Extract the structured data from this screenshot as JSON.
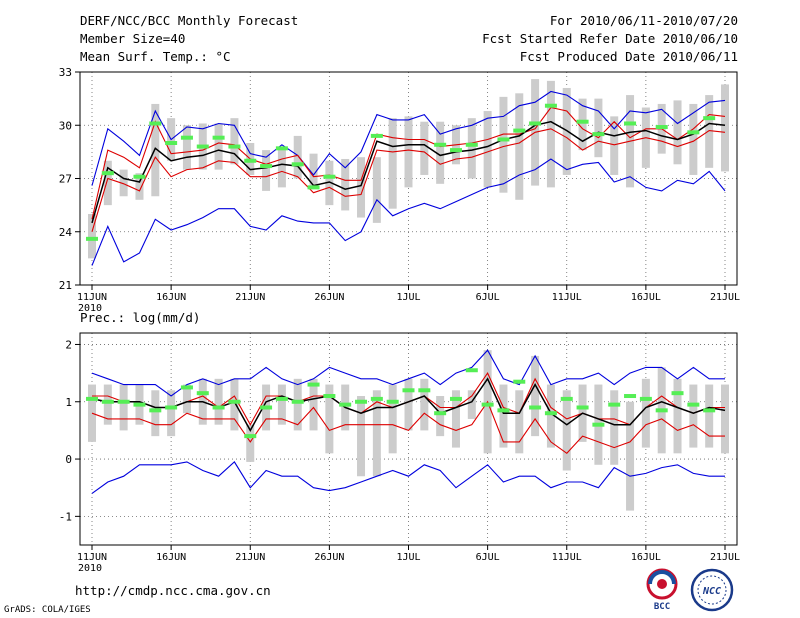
{
  "header": {
    "title": "DERF/NCC/BCC Monthly Forecast",
    "member_size": "Member Size=40",
    "variable": "Mean Surf. Temp.: °C",
    "period": "For 2010/06/11-2010/07/20",
    "started": "Fcst Started Refer Date 2010/06/10",
    "produced": "Fcst Produced Date 2010/06/11"
  },
  "colors": {
    "max_min_line": "#0000dd",
    "spread_line": "#dd0000",
    "mean_line": "#000000",
    "reference_marker": "#55ee55",
    "box": "#cccccc",
    "grid": "#666666"
  },
  "footer": {
    "url": "http://cmdp.ncc.cma.gov.cn",
    "credit": "GrADS: COLA/IGES",
    "logo_left": "BCC",
    "logo_right": "NCC"
  },
  "chart_data": [
    {
      "type": "line",
      "title": "Mean Surf. Temp.: °C",
      "ylabel": "°C",
      "ylim": [
        21,
        33
      ],
      "yticks": [
        21,
        24,
        27,
        30,
        33
      ],
      "xlim": [
        0,
        40
      ],
      "x_ticks": [
        {
          "x": 0,
          "label": "11JUN"
        },
        {
          "x": 5,
          "label": "16JUN"
        },
        {
          "x": 10,
          "label": "21JUN"
        },
        {
          "x": 15,
          "label": "26JUN"
        },
        {
          "x": 20,
          "label": "1JUL"
        },
        {
          "x": 25,
          "label": "6JUL"
        },
        {
          "x": 30,
          "label": "11JUL"
        },
        {
          "x": 35,
          "label": "16JUL"
        },
        {
          "x": 40,
          "label": "21JUL"
        }
      ],
      "year_label": "2010",
      "grid": true,
      "box_low": [
        22.5,
        25.5,
        26,
        25.8,
        26,
        28,
        27.5,
        27.5,
        27.5,
        27.8,
        27.2,
        26.3,
        26.5,
        27,
        26.5,
        25.5,
        25.2,
        24.8,
        24.5,
        25.3,
        26.5,
        27.2,
        26.7,
        27.8,
        27,
        26.5,
        26.2,
        25.8,
        26.6,
        26.5,
        27.2,
        28.6,
        28.2,
        27.2,
        26.5,
        27.6,
        28.4,
        27.8,
        27.2,
        27.6,
        27.4
      ],
      "box_high": [
        25,
        28,
        27.5,
        27.3,
        31.2,
        30.4,
        30,
        30.1,
        30.1,
        30.4,
        29,
        28.6,
        28.8,
        29.4,
        28.4,
        28,
        28.1,
        28.2,
        28.2,
        30.4,
        30.5,
        30.2,
        30.2,
        30,
        30.4,
        30.8,
        31.6,
        31.8,
        32.6,
        32.5,
        32.1,
        31.5,
        31.5,
        30.5,
        31.7,
        31,
        31.2,
        31.4,
        31.2,
        31.7,
        32.3
      ],
      "series": [
        {
          "name": "max",
          "color": "#0000dd",
          "values": [
            26.6,
            29.8,
            29.1,
            28.3,
            30.8,
            29.2,
            29.9,
            29.8,
            30.1,
            30,
            28.4,
            28.2,
            28.9,
            28.3,
            27.2,
            28.4,
            27.6,
            28.5,
            30.6,
            30.3,
            30.3,
            30.6,
            29.5,
            29.8,
            30,
            30.4,
            30.5,
            31.1,
            31.3,
            31.9,
            31.7,
            31.1,
            30.8,
            29.8,
            30.8,
            30.7,
            30.9,
            30.1,
            30.7,
            31.3,
            31.4
          ]
        },
        {
          "name": "upper",
          "color": "#dd0000",
          "values": [
            24.7,
            28.6,
            28.2,
            27.6,
            30.2,
            28.4,
            28.5,
            28.6,
            29.0,
            28.9,
            28.1,
            27.8,
            28.1,
            28.3,
            27.1,
            27.2,
            26.9,
            26.9,
            29.5,
            29.3,
            29.2,
            29.2,
            28.8,
            28.9,
            29,
            29.2,
            29.5,
            29.5,
            29.8,
            31,
            30.8,
            29.8,
            29.3,
            30.2,
            29.3,
            29.8,
            29.8,
            29.2,
            29.8,
            30.6,
            30.5
          ]
        },
        {
          "name": "mean",
          "color": "#000000",
          "values": [
            24.5,
            27.6,
            27,
            26.8,
            28.7,
            28,
            28.2,
            28.3,
            28.6,
            28.4,
            27.5,
            27.6,
            27.8,
            27.7,
            26.6,
            26.8,
            26.4,
            26.6,
            29.1,
            28.8,
            28.9,
            28.9,
            28.3,
            28.5,
            28.6,
            28.8,
            29.2,
            29.4,
            30,
            30.2,
            29.7,
            29.1,
            29.6,
            29.4,
            29.6,
            29.7,
            29.4,
            29.2,
            29.5,
            30.1,
            30
          ]
        },
        {
          "name": "lower",
          "color": "#dd0000",
          "values": [
            24,
            27,
            26.7,
            26.3,
            28.2,
            27.1,
            27.5,
            27.6,
            28,
            27.9,
            27.1,
            27.1,
            27.4,
            27.1,
            26.2,
            26.5,
            26,
            26.1,
            28.6,
            28.5,
            28.6,
            28.5,
            27.8,
            28.1,
            28.2,
            28.5,
            28.8,
            29,
            29.6,
            29.8,
            29.3,
            28.6,
            29.1,
            28.9,
            29.1,
            29.3,
            29.1,
            28.8,
            29.1,
            29.7,
            29.6
          ]
        },
        {
          "name": "min",
          "color": "#0000dd",
          "values": [
            22.1,
            24.3,
            22.3,
            22.8,
            24.7,
            24.1,
            24.4,
            24.8,
            25.3,
            25.3,
            24.3,
            24.1,
            24.9,
            24.6,
            24.5,
            24.5,
            23.5,
            24,
            25.8,
            24.9,
            25.3,
            25.6,
            25.3,
            25.7,
            26.1,
            26.5,
            26.7,
            27.2,
            27.5,
            28.1,
            27.5,
            27.8,
            27.9,
            26.8,
            27.1,
            26.5,
            26.3,
            26.9,
            26.7,
            27.4,
            26.3
          ]
        }
      ],
      "reference_markers": [
        {
          "x": 0,
          "y": 23.6
        },
        {
          "x": 1,
          "y": 27.3
        },
        {
          "x": 3,
          "y": 27.1
        },
        {
          "x": 4,
          "y": 30.1
        },
        {
          "x": 5,
          "y": 29
        },
        {
          "x": 6,
          "y": 29.3
        },
        {
          "x": 7,
          "y": 28.8
        },
        {
          "x": 8,
          "y": 29.3
        },
        {
          "x": 9,
          "y": 28.8
        },
        {
          "x": 10,
          "y": 28
        },
        {
          "x": 11,
          "y": 27.7
        },
        {
          "x": 12,
          "y": 28.7
        },
        {
          "x": 13,
          "y": 27.8
        },
        {
          "x": 14,
          "y": 26.5
        },
        {
          "x": 15,
          "y": 27.1
        },
        {
          "x": 18,
          "y": 29.4
        },
        {
          "x": 22,
          "y": 28.9
        },
        {
          "x": 23,
          "y": 28.6
        },
        {
          "x": 24,
          "y": 28.9
        },
        {
          "x": 26,
          "y": 29.2
        },
        {
          "x": 27,
          "y": 29.7
        },
        {
          "x": 28,
          "y": 30.1
        },
        {
          "x": 29,
          "y": 31.1
        },
        {
          "x": 31,
          "y": 30.2
        },
        {
          "x": 32,
          "y": 29.5
        },
        {
          "x": 34,
          "y": 30.1
        },
        {
          "x": 36,
          "y": 29.9
        },
        {
          "x": 38,
          "y": 29.6
        },
        {
          "x": 39,
          "y": 30.4
        }
      ]
    },
    {
      "type": "line",
      "title": "Prec.: log(mm/d)",
      "ylabel": "log(mm/d)",
      "ylim": [
        -1.5,
        2.2
      ],
      "yticks": [
        -1,
        0,
        1,
        2
      ],
      "xlim": [
        0,
        40
      ],
      "x_ticks": [
        {
          "x": 0,
          "label": "11JUN"
        },
        {
          "x": 5,
          "label": "16JUN"
        },
        {
          "x": 10,
          "label": "21JUN"
        },
        {
          "x": 15,
          "label": "26JUN"
        },
        {
          "x": 20,
          "label": "1JUL"
        },
        {
          "x": 25,
          "label": "6JUL"
        },
        {
          "x": 30,
          "label": "11JUL"
        },
        {
          "x": 35,
          "label": "16JUL"
        },
        {
          "x": 40,
          "label": "21JUL"
        }
      ],
      "year_label": "2010",
      "grid": true,
      "box_low": [
        0.3,
        0.6,
        0.5,
        0.6,
        0.4,
        0.4,
        0.8,
        0.6,
        0.6,
        0.5,
        -0.05,
        0.5,
        0.6,
        0.5,
        0.5,
        0.1,
        0.5,
        -0.3,
        -0.3,
        0.1,
        0.5,
        0.5,
        0.4,
        0.2,
        0.7,
        0.1,
        0.2,
        0.1,
        0.4,
        0.2,
        -0.2,
        0.3,
        -0.1,
        -0.1,
        -0.9,
        0.2,
        0.1,
        0.1,
        0.2,
        0.2,
        0.1
      ],
      "box_high": [
        1.3,
        1.3,
        1.3,
        1.3,
        1.2,
        1.2,
        1.3,
        1.4,
        1.4,
        1.4,
        0.6,
        1.3,
        1.3,
        1.4,
        1.4,
        1.3,
        1.3,
        1.1,
        1.2,
        1.3,
        1.4,
        1.4,
        1.1,
        1.2,
        1.2,
        1.9,
        1.3,
        1.2,
        1.8,
        1.3,
        1.2,
        1.3,
        1.3,
        1.2,
        1.0,
        1.4,
        1.6,
        1.4,
        1.3,
        1.3,
        1.3
      ],
      "series": [
        {
          "name": "max",
          "color": "#0000dd",
          "values": [
            1.5,
            1.4,
            1.3,
            1.3,
            1.3,
            1.1,
            1.3,
            1.4,
            1.3,
            1.4,
            1.4,
            1.6,
            1.4,
            1.3,
            1.4,
            1.6,
            1.5,
            1.4,
            1.4,
            1.3,
            1.4,
            1.5,
            1.3,
            1.5,
            1.6,
            1.9,
            1.4,
            1.3,
            1.8,
            1.3,
            1.4,
            1.4,
            1.5,
            1.3,
            1.5,
            1.6,
            1.6,
            1.4,
            1.6,
            1.4,
            1.4
          ]
        },
        {
          "name": "upper",
          "color": "#dd0000",
          "values": [
            1.1,
            1.1,
            1.0,
            1.0,
            0.9,
            0.9,
            1.0,
            1.1,
            0.9,
            1.1,
            0.6,
            1.1,
            1.1,
            1.0,
            1.1,
            1.1,
            0.9,
            0.8,
            1.0,
            0.9,
            1.0,
            1.1,
            0.9,
            0.9,
            1.1,
            1.5,
            0.9,
            0.8,
            1.4,
            0.9,
            0.7,
            0.8,
            0.7,
            0.7,
            0.6,
            0.9,
            1.1,
            0.9,
            0.8,
            0.9,
            0.9
          ]
        },
        {
          "name": "mean",
          "color": "#000000",
          "values": [
            1.05,
            1.0,
            1.0,
            1.0,
            0.9,
            0.9,
            1.0,
            1.0,
            0.9,
            1.0,
            0.5,
            1.0,
            1.1,
            1.0,
            1.05,
            1.1,
            0.9,
            0.8,
            0.9,
            0.9,
            1.0,
            1.1,
            0.8,
            0.9,
            1.0,
            1.4,
            0.8,
            0.8,
            1.3,
            0.8,
            0.6,
            0.8,
            0.7,
            0.6,
            0.6,
            0.9,
            1.0,
            0.9,
            0.8,
            0.9,
            0.85
          ]
        },
        {
          "name": "lower",
          "color": "#dd0000",
          "values": [
            0.8,
            0.7,
            0.7,
            0.7,
            0.6,
            0.6,
            0.8,
            0.7,
            0.7,
            0.7,
            0.3,
            0.7,
            0.7,
            0.6,
            0.9,
            0.5,
            0.6,
            0.6,
            0.6,
            0.6,
            0.5,
            0.8,
            0.6,
            0.5,
            0.6,
            1.0,
            0.3,
            0.3,
            0.7,
            0.3,
            0.1,
            0.4,
            0.3,
            0.2,
            0.3,
            0.6,
            0.7,
            0.5,
            0.6,
            0.4,
            0.4
          ]
        },
        {
          "name": "min",
          "color": "#0000dd",
          "values": [
            -0.6,
            -0.4,
            -0.3,
            -0.1,
            -0.1,
            -0.1,
            -0.05,
            -0.2,
            -0.3,
            -0.05,
            -0.5,
            -0.2,
            -0.3,
            -0.3,
            -0.5,
            -0.55,
            -0.5,
            -0.4,
            -0.3,
            -0.2,
            -0.3,
            -0.1,
            -0.2,
            -0.5,
            -0.3,
            -0.1,
            -0.4,
            -0.3,
            -0.3,
            -0.5,
            -0.4,
            -0.4,
            -0.5,
            -0.15,
            -0.3,
            -0.25,
            -0.15,
            -0.1,
            -0.25,
            -0.3,
            -0.3
          ]
        }
      ],
      "reference_markers": [
        {
          "x": 0,
          "y": 1.05
        },
        {
          "x": 1,
          "y": 1.0
        },
        {
          "x": 2,
          "y": 1.0
        },
        {
          "x": 3,
          "y": 0.95
        },
        {
          "x": 4,
          "y": 0.85
        },
        {
          "x": 5,
          "y": 0.9
        },
        {
          "x": 6,
          "y": 1.25
        },
        {
          "x": 7,
          "y": 1.15
        },
        {
          "x": 8,
          "y": 0.9
        },
        {
          "x": 9,
          "y": 1.0
        },
        {
          "x": 10,
          "y": 0.4
        },
        {
          "x": 11,
          "y": 0.9
        },
        {
          "x": 12,
          "y": 1.05
        },
        {
          "x": 13,
          "y": 1.0
        },
        {
          "x": 14,
          "y": 1.3
        },
        {
          "x": 15,
          "y": 1.1
        },
        {
          "x": 16,
          "y": 0.95
        },
        {
          "x": 17,
          "y": 1.0
        },
        {
          "x": 18,
          "y": 1.05
        },
        {
          "x": 19,
          "y": 1.0
        },
        {
          "x": 20,
          "y": 1.2
        },
        {
          "x": 21,
          "y": 1.2
        },
        {
          "x": 22,
          "y": 0.8
        },
        {
          "x": 23,
          "y": 1.05
        },
        {
          "x": 24,
          "y": 1.55
        },
        {
          "x": 25,
          "y": 0.95
        },
        {
          "x": 26,
          "y": 0.85
        },
        {
          "x": 27,
          "y": 1.35
        },
        {
          "x": 28,
          "y": 0.9
        },
        {
          "x": 29,
          "y": 0.8
        },
        {
          "x": 30,
          "y": 1.05
        },
        {
          "x": 31,
          "y": 0.9
        },
        {
          "x": 32,
          "y": 0.6
        },
        {
          "x": 33,
          "y": 0.95
        },
        {
          "x": 34,
          "y": 1.1
        },
        {
          "x": 35,
          "y": 1.05
        },
        {
          "x": 36,
          "y": 0.85
        },
        {
          "x": 37,
          "y": 1.15
        },
        {
          "x": 38,
          "y": 0.95
        },
        {
          "x": 39,
          "y": 0.85
        }
      ]
    }
  ]
}
